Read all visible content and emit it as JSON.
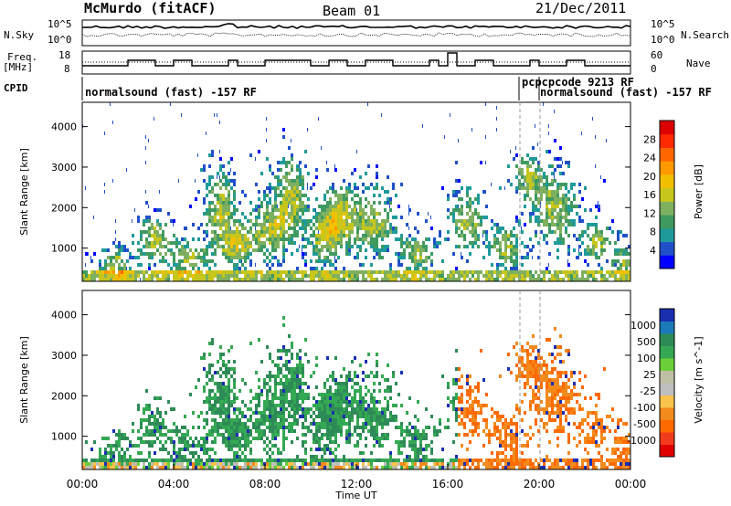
{
  "header": {
    "site": "McMurdo (fitACF)",
    "beam": "Beam 01",
    "date": "21/Dec/2011"
  },
  "left_labels": {
    "nsky": "N.Sky",
    "freq_line1": "Freq.",
    "freq_line2": "[MHz]",
    "cpid": "CPID"
  },
  "right_labels": {
    "nsearch": "N.Search",
    "nave": "Nave"
  },
  "noise_axis": {
    "left_ticks": [
      "10^5",
      "10^0"
    ],
    "right_ticks": [
      "10^5",
      "10^0"
    ]
  },
  "freq_axis": {
    "left_ticks": [
      "18",
      "8"
    ],
    "right_ticks": [
      "60",
      "0"
    ]
  },
  "cpid_segments": [
    {
      "label": "normalsound (fast) -157 RF"
    },
    {
      "label": "pcpcpcode 9213 RF"
    },
    {
      "label": "normalsound (fast) -157 RF"
    }
  ],
  "chart_data": [
    {
      "type": "heatmap",
      "panel": "power",
      "ylabel": "Slant Range [km]",
      "y_ticks": [
        1000,
        2000,
        3000,
        4000
      ],
      "ylim": [
        180,
        4600
      ],
      "colorbar": {
        "label": "Power [dB]",
        "ticks": [
          "4",
          "8",
          "12",
          "16",
          "20",
          "24",
          "28"
        ],
        "colors": [
          "#0000ff",
          "#2050c8",
          "#1f9a9a",
          "#3f9a60",
          "#7fb060",
          "#c6c61c",
          "#f0c000",
          "#ff9900",
          "#ff6600",
          "#ff2a00",
          "#dc0000"
        ]
      }
    },
    {
      "type": "heatmap",
      "panel": "velocity",
      "ylabel": "Slant Range [km]",
      "y_ticks": [
        1000,
        2000,
        3000,
        4000
      ],
      "ylim": [
        180,
        4600
      ],
      "xlabel": "Time UT",
      "x_ticks": [
        "00:00",
        "04:00",
        "08:00",
        "12:00",
        "16:00",
        "20:00",
        "00:00"
      ],
      "colorbar": {
        "label": "Velocity [m s^-1]",
        "ticks": [
          "1000",
          "500",
          "100",
          "25",
          "-25",
          "-100",
          "-500",
          "-1000"
        ],
        "colors": [
          "#1a2fb0",
          "#1c7ab8",
          "#2e8b57",
          "#34a853",
          "#6ccf3a",
          "#bfbfa5",
          "#bfbfbf",
          "#f7c34a",
          "#f28a1c",
          "#ff6a00",
          "#f03c1c",
          "#e00000"
        ]
      }
    }
  ]
}
